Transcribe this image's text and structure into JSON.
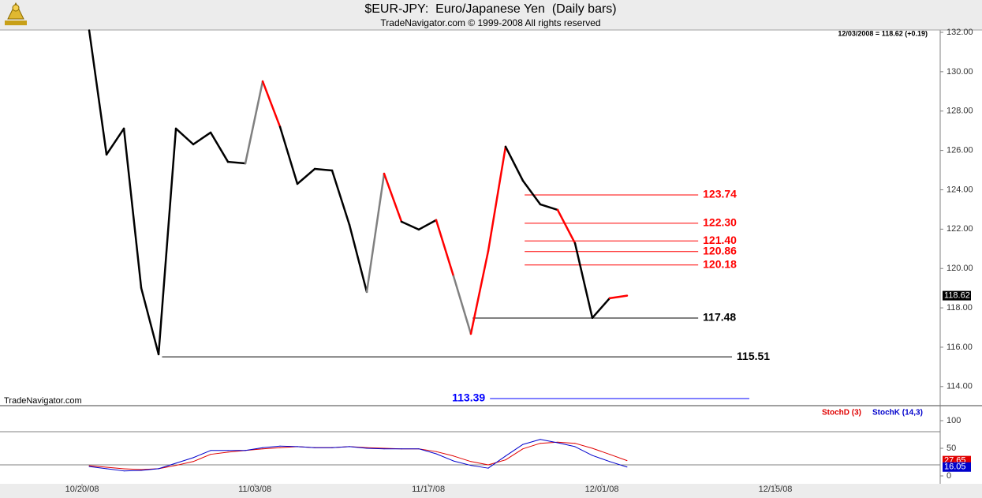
{
  "chart_data": [
    {
      "type": "line",
      "title": "$EUR-JPY:  Euro/Japanese Yen  (Daily bars)",
      "subtitle": "TradeNavigator.com © 1999-2008 All rights reserved",
      "header": "12/03/2008 = 118.62 (+0.19)",
      "watermark": "TradeNavigator.com",
      "x": [
        0,
        1,
        2,
        3,
        4,
        5,
        6,
        7,
        8,
        9,
        10,
        11,
        12,
        13,
        14,
        15,
        16,
        17,
        18,
        19,
        20,
        21,
        22,
        23,
        24,
        25,
        26,
        27,
        28,
        29,
        30,
        31
      ],
      "series": [
        {
          "color": "#000000",
          "values": [
            132.1,
            125.79,
            127.11,
            119.01,
            115.64,
            127.11,
            126.31,
            126.91,
            125.42,
            125.34,
            129.51,
            127.2,
            124.3,
            125.06,
            124.98,
            122.22,
            118.81,
            124.82,
            122.38,
            121.98,
            122.46,
            119.61,
            116.68,
            120.89,
            126.19,
            124.46,
            123.26,
            122.98,
            121.29,
            117.49,
            118.49,
            118.62
          ],
          "segment_colors": [
            "#000000",
            "#000000",
            "#000000",
            "#000000",
            "#000000",
            "#000000",
            "#000000",
            "#000000",
            "#000000",
            "#000000",
            "#808080",
            "#ff0000",
            "#000000",
            "#000000",
            "#000000",
            "#000000",
            "#000000",
            "#808080",
            "#ff0000",
            "#000000",
            "#000000",
            "#ff0000",
            "#808080",
            "#ff0000",
            "#ff0000",
            "#000000",
            "#000000",
            "#000000",
            "#ff0000",
            "#000000",
            "#000000",
            "#ff0000"
          ]
        }
      ],
      "levels": [
        {
          "value": 123.74,
          "label": "123.74",
          "color": "#ff0000",
          "from": 25.1,
          "to": 35.1,
          "label_side": "right"
        },
        {
          "value": 122.3,
          "label": "122.30",
          "color": "#ff0000",
          "from": 25.1,
          "to": 35.1,
          "label_side": "right"
        },
        {
          "value": 121.4,
          "label": "121.40",
          "color": "#ff0000",
          "from": 25.1,
          "to": 35.1,
          "label_side": "right"
        },
        {
          "value": 120.86,
          "label": "120.86",
          "color": "#ff0000",
          "from": 25.1,
          "to": 35.1,
          "label_side": "right"
        },
        {
          "value": 120.18,
          "label": "120.18",
          "color": "#ff0000",
          "from": 25.1,
          "to": 35.1,
          "label_side": "right"
        },
        {
          "value": 117.48,
          "label": "117.48",
          "color": "#000000",
          "from": 22.1,
          "to": 35.1,
          "label_side": "right"
        },
        {
          "value": 115.51,
          "label": "115.51",
          "color": "#000000",
          "from": 4.2,
          "to": 37.05,
          "label_side": "right"
        },
        {
          "value": 113.39,
          "label": "113.39",
          "color": "#0000ff",
          "from": 23.1,
          "to": 38.05,
          "label_side": "left"
        }
      ],
      "xlim": [
        -5.14,
        49.05
      ],
      "ylim": [
        113.07,
        132.12
      ],
      "yticks": [
        {
          "value": 114,
          "label": "114.00"
        },
        {
          "value": 116,
          "label": "116.00"
        },
        {
          "value": 118,
          "label": "118.00"
        },
        {
          "value": 120,
          "label": "120.00"
        },
        {
          "value": 122,
          "label": "122.00"
        },
        {
          "value": 124,
          "label": "124.00"
        },
        {
          "value": 126,
          "label": "126.00"
        },
        {
          "value": 128,
          "label": "128.00"
        },
        {
          "value": 130,
          "label": "130.00"
        },
        {
          "value": 132,
          "label": "132.00"
        }
      ]
    },
    {
      "type": "line",
      "x": [
        0,
        1,
        2,
        3,
        4,
        5,
        6,
        7,
        8,
        9,
        10,
        11,
        12,
        13,
        14,
        15,
        16,
        17,
        18,
        19,
        20,
        21,
        22,
        23,
        24,
        25,
        26,
        27,
        28,
        29,
        30,
        31
      ],
      "series": [
        {
          "name": "StochD (3)",
          "color": "#e00000",
          "values": [
            18.6,
            15.7,
            12.9,
            11.4,
            13,
            19,
            26,
            39,
            43,
            46,
            49,
            51,
            53,
            51,
            51,
            53,
            51,
            50,
            49,
            49,
            44,
            36,
            26,
            20,
            29,
            49,
            59,
            61,
            59,
            50,
            39,
            27.65
          ]
        },
        {
          "name": "StochK (14,3)",
          "color": "#0000cc",
          "values": [
            17,
            13,
            9,
            10,
            13,
            23,
            33,
            46,
            46,
            46,
            51,
            54,
            53,
            51,
            51,
            53,
            50,
            49,
            49,
            49,
            40,
            27,
            19,
            14,
            36,
            57,
            66,
            60,
            53,
            37,
            26,
            16.05
          ]
        }
      ],
      "reference_lines": [
        20,
        80
      ],
      "xlim": [
        -5.14,
        49.05
      ],
      "ylim": [
        -14.3,
        125.7
      ],
      "yticks": [
        0,
        50,
        100
      ],
      "xticks": [
        {
          "value": -0.41,
          "label": "10/20/08"
        },
        {
          "value": 9.55,
          "label": "11/03/08"
        },
        {
          "value": 19.55,
          "label": "11/17/08"
        },
        {
          "value": 29.55,
          "label": "12/01/08"
        },
        {
          "value": 39.55,
          "label": "12/15/08"
        }
      ]
    }
  ]
}
